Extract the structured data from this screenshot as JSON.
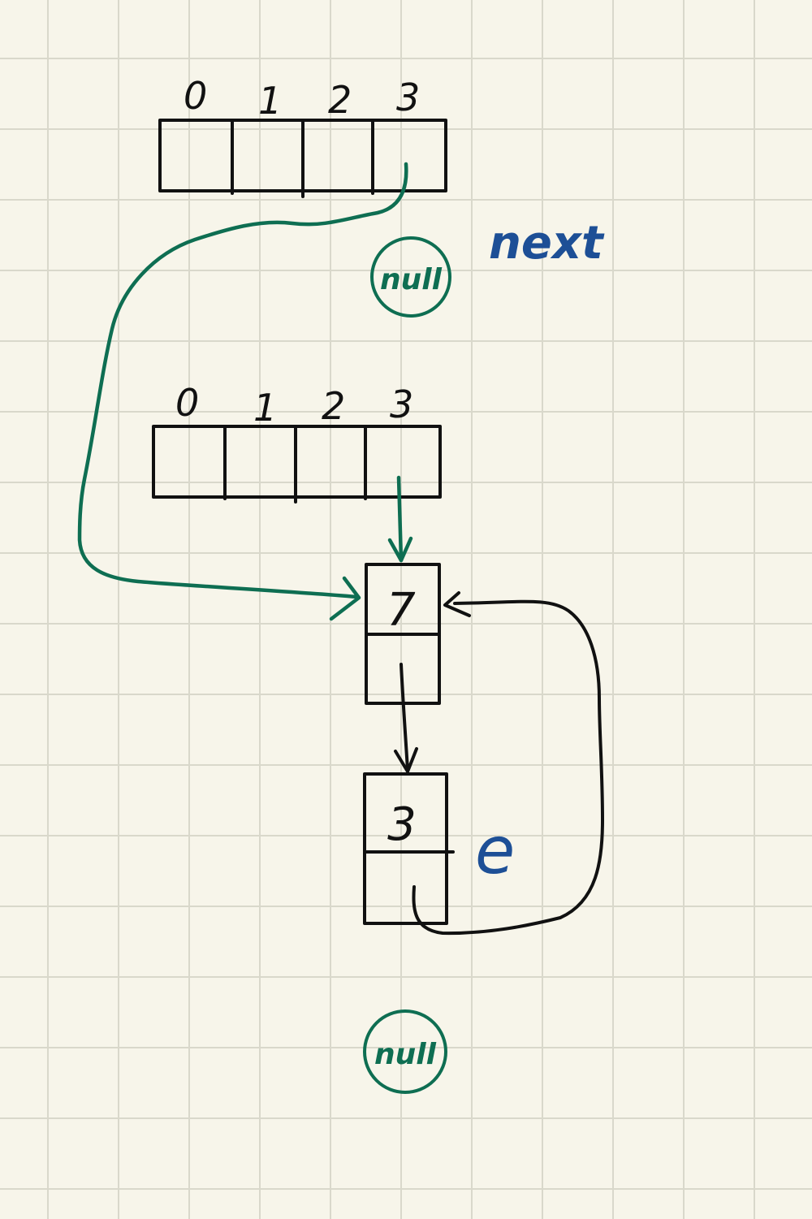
{
  "colors": {
    "paper": "#f7f5ea",
    "grid": "#d9d8cb",
    "ink": "#111111",
    "green": "#0e6e52",
    "blue": "#1d4f96"
  },
  "top_array": {
    "indices": [
      "0",
      "1",
      "2",
      "3"
    ]
  },
  "bottom_array": {
    "indices": [
      "0",
      "1",
      "2",
      "3"
    ]
  },
  "labels": {
    "next": "next",
    "e": "e"
  },
  "nodes": {
    "node_a_value": "7",
    "node_b_value": "3"
  },
  "null_markers": {
    "top": "null",
    "bottom": "null"
  }
}
